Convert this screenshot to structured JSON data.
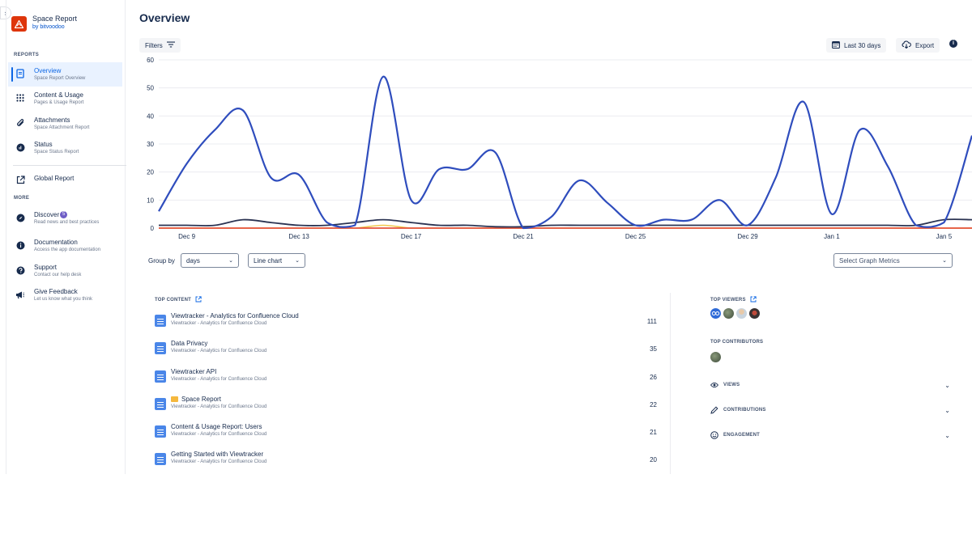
{
  "app": {
    "name": "Space Report",
    "vendor": "by bitvoodoo"
  },
  "sidebar": {
    "reports_heading": "REPORTS",
    "more_heading": "MORE",
    "items": [
      {
        "label": "Overview",
        "sub": "Space Report Overview",
        "icon": "document-icon"
      },
      {
        "label": "Content & Usage",
        "sub": "Pages & Usage Report",
        "icon": "grid-icon"
      },
      {
        "label": "Attachments",
        "sub": "Space Attachment Report",
        "icon": "paperclip-icon"
      },
      {
        "label": "Status",
        "sub": "Space Status Report",
        "icon": "status-icon"
      }
    ],
    "global_report": "Global Report",
    "more_items": [
      {
        "label": "Discover",
        "badge": "5",
        "sub": "Read news and best practices",
        "icon": "compass-icon"
      },
      {
        "label": "Documentation",
        "sub": "Access the app documentation",
        "icon": "info-icon"
      },
      {
        "label": "Support",
        "sub": "Contact our help desk",
        "icon": "question-icon"
      },
      {
        "label": "Give Feedback",
        "sub": "Let us know what you think",
        "icon": "megaphone-icon"
      }
    ]
  },
  "header": {
    "title": "Overview",
    "filters_label": "Filters",
    "date_range_label": "Last 30 days",
    "export_label": "Export"
  },
  "controls": {
    "group_by_label": "Group by",
    "group_by_value": "days",
    "chart_type_value": "Line chart",
    "metrics_placeholder": "Select Graph Metrics"
  },
  "colors": {
    "accent": "#0c66e4",
    "views": "#2f4dbd",
    "secondary": "#2b3352",
    "tertiary": "#e5533d",
    "quaternary": "#f2c94c"
  },
  "chart_data": {
    "type": "line",
    "x": [
      "Dec 8",
      "Dec 9",
      "Dec 10",
      "Dec 11",
      "Dec 12",
      "Dec 13",
      "Dec 14",
      "Dec 15",
      "Dec 16",
      "Dec 17",
      "Dec 18",
      "Dec 19",
      "Dec 20",
      "Dec 21",
      "Dec 22",
      "Dec 23",
      "Dec 24",
      "Dec 25",
      "Dec 26",
      "Dec 27",
      "Dec 28",
      "Dec 29",
      "Dec 30",
      "Dec 31",
      "Jan 1",
      "Jan 2",
      "Jan 3",
      "Jan 4",
      "Jan 5",
      "Jan 6"
    ],
    "x_tick_labels": [
      "Dec 9",
      "Dec 13",
      "Dec 17",
      "Dec 21",
      "Dec 25",
      "Dec 29",
      "Jan 1",
      "Jan 5"
    ],
    "x_tick_indices": [
      1,
      5,
      9,
      13,
      17,
      21,
      24,
      28
    ],
    "ylim": [
      0,
      60
    ],
    "y_ticks": [
      0,
      10,
      20,
      30,
      40,
      50,
      60
    ],
    "grid": true,
    "series": [
      {
        "color": "#2f4dbd",
        "values": [
          6,
          23,
          35,
          42,
          18,
          19,
          2,
          1,
          54,
          10,
          21,
          21,
          27,
          0,
          4,
          17,
          9,
          1,
          3,
          3,
          10,
          1,
          18,
          45,
          5,
          35,
          22,
          1,
          2,
          33
        ]
      },
      {
        "color": "#2b3352",
        "values": [
          1,
          1,
          1,
          3,
          2,
          1,
          1,
          2,
          3,
          2,
          1,
          1,
          0.5,
          0.5,
          1,
          1,
          1,
          1,
          1,
          1,
          1,
          1,
          1,
          1,
          1,
          1,
          1,
          1,
          3,
          3
        ]
      },
      {
        "color": "#e5533d",
        "values": [
          0,
          0,
          0,
          0,
          0,
          0,
          0,
          0,
          0,
          0,
          0,
          0,
          0,
          0,
          0,
          0,
          0,
          0,
          0,
          0,
          0,
          0,
          0,
          0,
          0,
          0,
          0,
          0,
          0,
          0
        ]
      },
      {
        "color": "#f2c94c",
        "values": [
          0,
          0,
          0,
          0,
          0,
          0,
          0,
          0,
          1,
          0,
          0,
          0,
          0,
          0,
          0,
          0,
          0,
          0,
          0,
          0,
          0,
          0,
          0,
          0,
          0,
          0,
          0,
          0,
          0,
          0
        ]
      }
    ]
  },
  "top_content": {
    "heading": "TOP CONTENT",
    "rows": [
      {
        "title": "Viewtracker - Analytics for Confluence Cloud",
        "sub": "Viewtracker - Analytics for Confluence Cloud",
        "count": "111"
      },
      {
        "title": "Data Privacy",
        "sub": "Viewtracker - Analytics for Confluence Cloud",
        "count": "35"
      },
      {
        "title": "Viewtracker API",
        "sub": "Viewtracker - Analytics for Confluence Cloud",
        "count": "26"
      },
      {
        "title": "Space Report",
        "sub": "Viewtracker - Analytics for Confluence Cloud",
        "count": "22",
        "folder": true
      },
      {
        "title": "Content & Usage Report: Users",
        "sub": "Viewtracker - Analytics for Confluence Cloud",
        "count": "21"
      },
      {
        "title": "Getting Started with Viewtracker",
        "sub": "Viewtracker - Analytics for Confluence Cloud",
        "count": "20"
      }
    ]
  },
  "right_panel": {
    "top_viewers": "TOP VIEWERS",
    "top_contributors": "TOP CONTRIBUTORS",
    "views": "VIEWS",
    "contributions": "CONTRIBUTIONS",
    "engagement": "ENGAGEMENT"
  }
}
